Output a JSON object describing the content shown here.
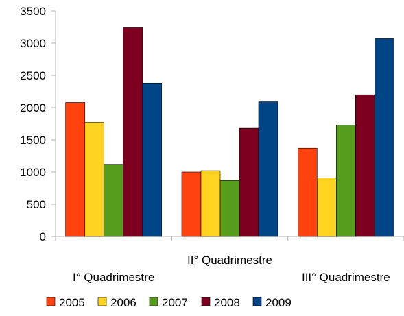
{
  "chart_data": {
    "type": "bar",
    "categories": [
      "I° Quadrimestre",
      "II° Quadrimestre",
      "III° Quadrimestre"
    ],
    "series": [
      {
        "name": "2005",
        "color": "#ff420e",
        "values": [
          2080,
          1000,
          1370
        ]
      },
      {
        "name": "2006",
        "color": "#ffd320",
        "values": [
          1770,
          1020,
          910
        ]
      },
      {
        "name": "2007",
        "color": "#579d1c",
        "values": [
          1120,
          870,
          1730
        ]
      },
      {
        "name": "2008",
        "color": "#7e0021",
        "values": [
          3240,
          1680,
          2200
        ]
      },
      {
        "name": "2009",
        "color": "#004586",
        "values": [
          2380,
          2090,
          3070
        ]
      }
    ],
    "ylim": [
      0,
      3500
    ],
    "yticks": [
      0,
      500,
      1000,
      1500,
      2000,
      2500,
      3000,
      3500
    ],
    "title": "",
    "xlabel": "",
    "ylabel": "",
    "grid": false,
    "legend_position": "bottom"
  }
}
